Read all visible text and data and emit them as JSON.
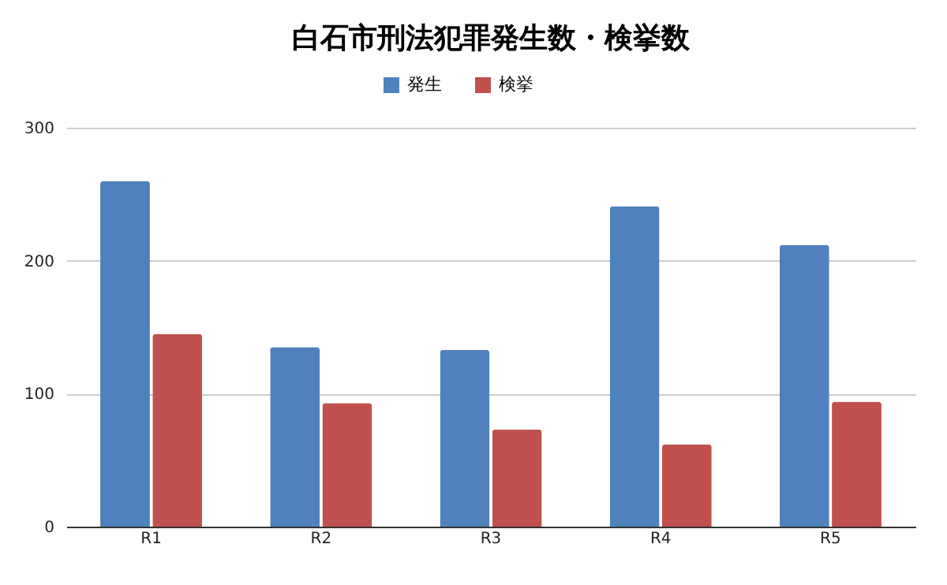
{
  "chart_data": {
    "type": "bar",
    "title": "白石市刑法犯罪発生数・検挙数",
    "categories": [
      "R1",
      "R2",
      "R3",
      "R4",
      "R5"
    ],
    "series": [
      {
        "name": "発生",
        "color": "#4f81bd",
        "values": [
          260,
          135,
          133,
          241,
          212
        ]
      },
      {
        "name": "検挙",
        "color": "#c0504d",
        "values": [
          145,
          93,
          73,
          62,
          94
        ]
      }
    ],
    "ylim": [
      0,
      300
    ],
    "yticks": [
      0,
      100,
      200,
      300
    ],
    "grid": "y",
    "legend": "top"
  }
}
